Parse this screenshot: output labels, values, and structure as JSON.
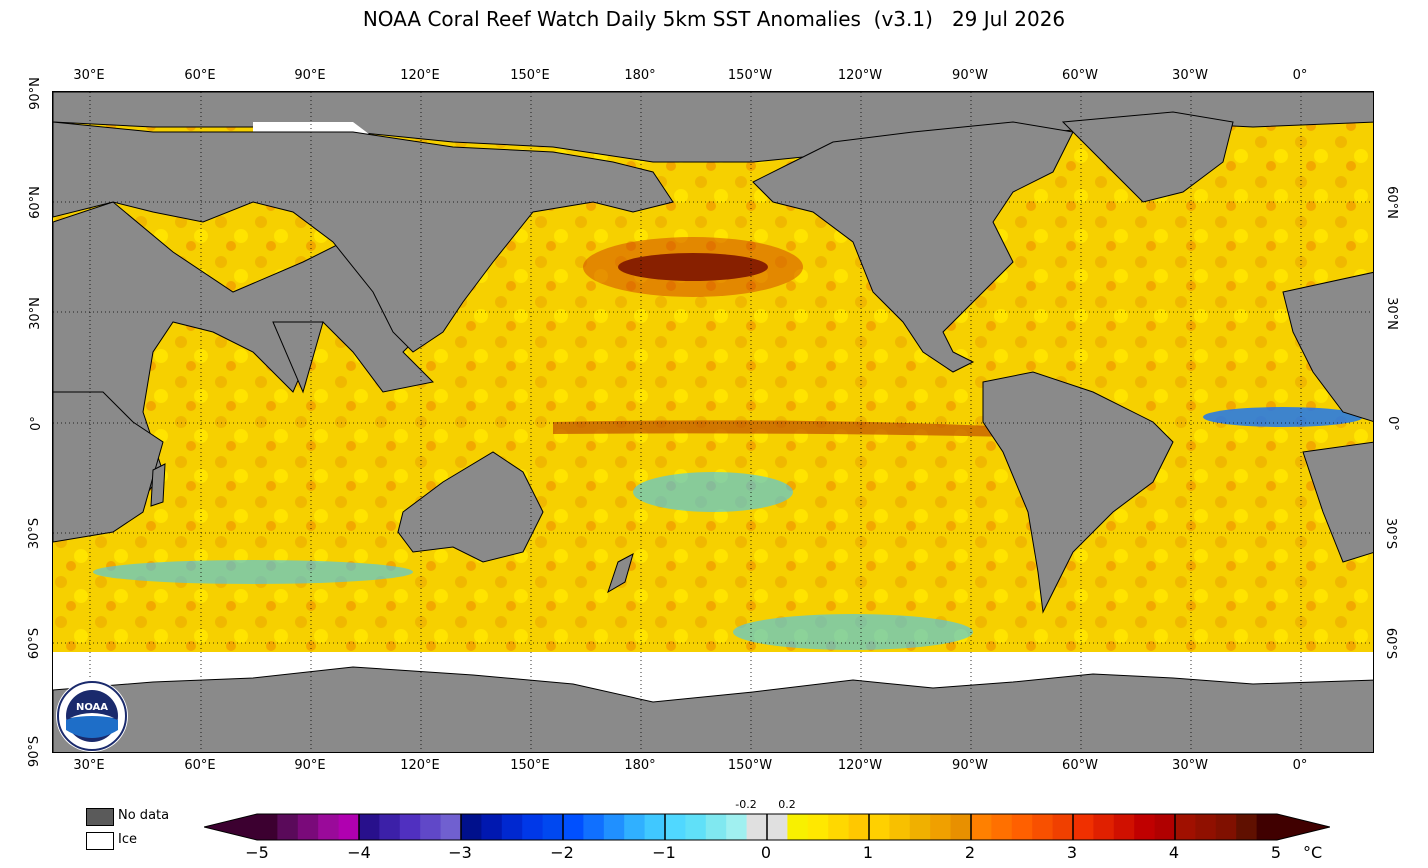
{
  "title": "NOAA Coral Reef Watch Daily 5km SST Anomalies  (v3.1)   29 Jul 2026",
  "longitude_labels": [
    "30°E",
    "60°E",
    "90°E",
    "120°E",
    "150°E",
    "180°",
    "150°W",
    "120°W",
    "90°W",
    "60°W",
    "30°W",
    "0°"
  ],
  "latitude_labels_left": [
    "90°N",
    "60°N",
    "30°N",
    "0°",
    "30°S",
    "60°S",
    "90°S"
  ],
  "latitude_labels_right": [
    "60°N",
    "30°N",
    "0°",
    "30°S",
    "60°S"
  ],
  "legend": {
    "no_data_label": "No data",
    "ice_label": "Ice",
    "no_data_color": "#5a5a5a",
    "ice_color": "#ffffff"
  },
  "colorbar": {
    "tick_labels": [
      "−5",
      "−4",
      "−3",
      "−2",
      "−1",
      "0",
      "1",
      "2",
      "3",
      "4",
      "5"
    ],
    "small_labels": [
      "-0.2",
      "0.2"
    ],
    "unit": "°C",
    "colors": [
      "#3c0030",
      "#5a0a5a",
      "#7a0a7a",
      "#9a0a9a",
      "#b000b0",
      "#28108c",
      "#3c20a8",
      "#5030c0",
      "#6048c8",
      "#7060d0",
      "#00108c",
      "#0018b0",
      "#0028d0",
      "#0038e8",
      "#0048f0",
      "#0050ff",
      "#1070ff",
      "#2090ff",
      "#30b0ff",
      "#40c8ff",
      "#50d8ff",
      "#60e0f8",
      "#80e8f0",
      "#a0f0f0",
      "#c0f8f8",
      "#f0f000",
      "#f8f000",
      "#ffe800",
      "#ffd800",
      "#ffc800",
      "#ffd000",
      "#f8c000",
      "#f0b000",
      "#f0a000",
      "#e89000",
      "#ff8000",
      "#ff7000",
      "#ff6000",
      "#f85000",
      "#f04000",
      "#f03000",
      "#e02000",
      "#d01000",
      "#c00000",
      "#b00000",
      "#a01000",
      "#901000",
      "#801000",
      "#601000",
      "#400000"
    ],
    "neutral_colors": [
      "#e0e0e0",
      "#ffffff",
      "#e0e0e0"
    ]
  },
  "map": {
    "land_color": "#8a8a8a",
    "ice_color": "#ffffff",
    "ocean_base_color": "#f6d000"
  },
  "logo_text": "NOAA"
}
